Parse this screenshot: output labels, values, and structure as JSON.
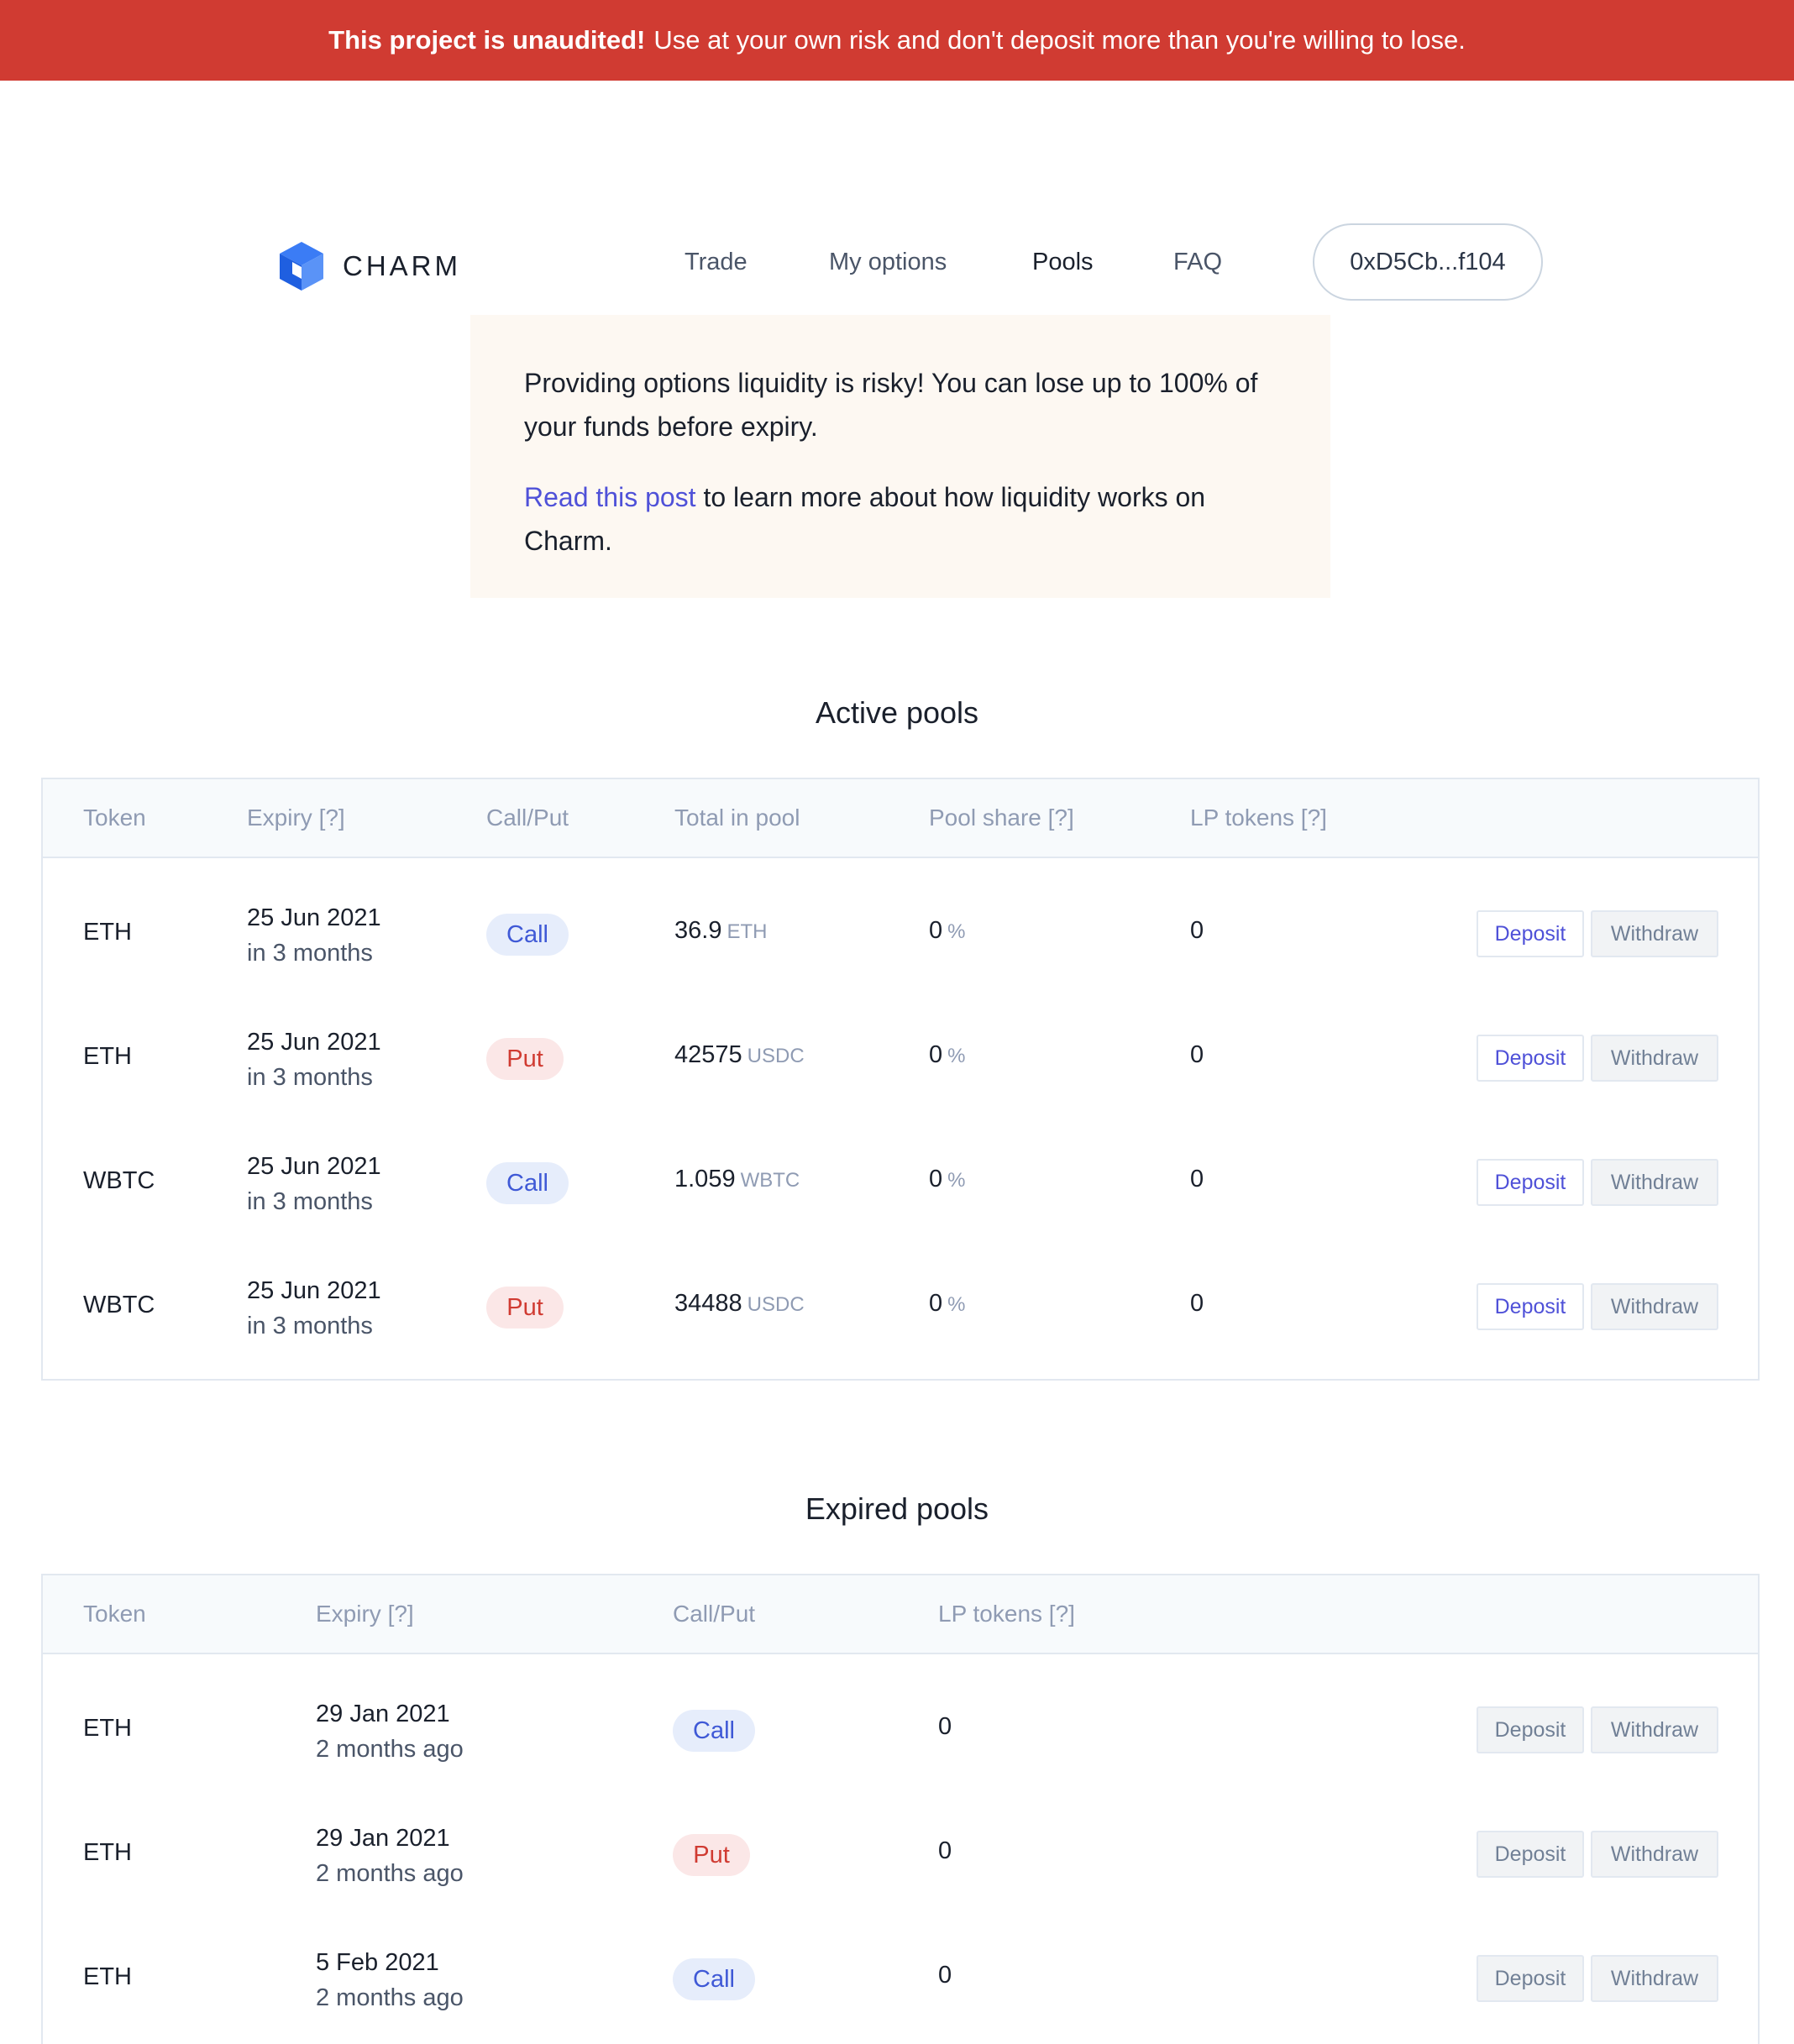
{
  "banner": {
    "bold": "This project is unaudited!",
    "text": "Use at your own risk and don't deposit more than you're willing to lose."
  },
  "header": {
    "brand": "CHARM",
    "nav": [
      "Trade",
      "My options",
      "Pools",
      "FAQ"
    ],
    "active": "Pools",
    "wallet": "0xD5Cb...f104"
  },
  "notice": {
    "line1": "Providing options liquidity is risky! You can lose up to 100% of your funds before expiry.",
    "link": "Read this post",
    "line2": " to learn more about how liquidity works on Charm."
  },
  "active": {
    "title": "Active pools",
    "headers": [
      "Token",
      "Expiry [?]",
      "Call/Put",
      "Total in pool",
      "Pool share [?]",
      "LP tokens [?]"
    ],
    "rows": [
      {
        "token": "ETH",
        "date": "25 Jun 2021",
        "rel": "in 3 months",
        "type": "Call",
        "total": "36.9",
        "unit": "ETH",
        "share": "0",
        "share_unit": "%",
        "lp": "0",
        "deposit": "Deposit",
        "withdraw": "Withdraw"
      },
      {
        "token": "ETH",
        "date": "25 Jun 2021",
        "rel": "in 3 months",
        "type": "Put",
        "total": "42575",
        "unit": "USDC",
        "share": "0",
        "share_unit": "%",
        "lp": "0",
        "deposit": "Deposit",
        "withdraw": "Withdraw"
      },
      {
        "token": "WBTC",
        "date": "25 Jun 2021",
        "rel": "in 3 months",
        "type": "Call",
        "total": "1.059",
        "unit": "WBTC",
        "share": "0",
        "share_unit": "%",
        "lp": "0",
        "deposit": "Deposit",
        "withdraw": "Withdraw"
      },
      {
        "token": "WBTC",
        "date": "25 Jun 2021",
        "rel": "in 3 months",
        "type": "Put",
        "total": "34488",
        "unit": "USDC",
        "share": "0",
        "share_unit": "%",
        "lp": "0",
        "deposit": "Deposit",
        "withdraw": "Withdraw"
      }
    ]
  },
  "expired": {
    "title": "Expired pools",
    "headers": [
      "Token",
      "Expiry [?]",
      "Call/Put",
      "LP tokens [?]"
    ],
    "rows": [
      {
        "token": "ETH",
        "date": "29 Jan 2021",
        "rel": "2 months ago",
        "type": "Call",
        "lp": "0",
        "deposit": "Deposit",
        "withdraw": "Withdraw"
      },
      {
        "token": "ETH",
        "date": "29 Jan 2021",
        "rel": "2 months ago",
        "type": "Put",
        "lp": "0",
        "deposit": "Deposit",
        "withdraw": "Withdraw"
      },
      {
        "token": "ETH",
        "date": "5 Feb 2021",
        "rel": "2 months ago",
        "type": "Call",
        "lp": "0",
        "deposit": "Deposit",
        "withdraw": "Withdraw"
      }
    ]
  },
  "colors": {
    "banner": "#d03b32",
    "accent": "#4f51d8",
    "call": "#3f59d6",
    "put": "#d03b32",
    "notice_bg": "#fdf8f2"
  }
}
